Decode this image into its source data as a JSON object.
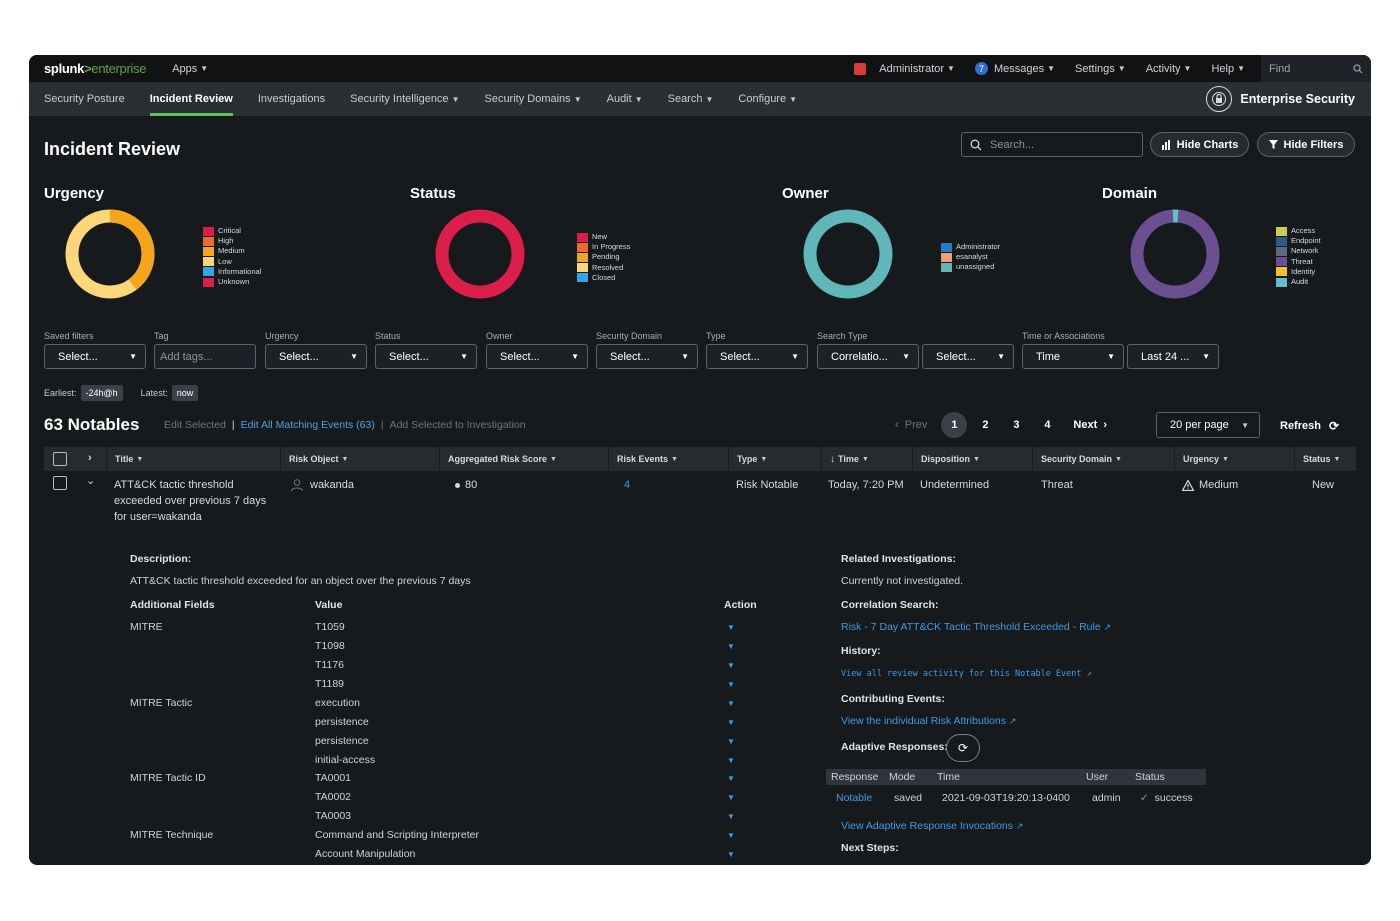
{
  "topbar": {
    "logo_main": "splunk",
    "logo_gt": ">",
    "logo_sub": "enterprise",
    "apps": "Apps",
    "user": "Administrator",
    "messages_count": "7",
    "messages": "Messages",
    "settings": "Settings",
    "activity": "Activity",
    "help": "Help",
    "find": "Find"
  },
  "nav": {
    "items": [
      "Security Posture",
      "Incident Review",
      "Investigations",
      "Security Intelligence",
      "Security Domains",
      "Audit",
      "Search",
      "Configure"
    ],
    "active": "Incident Review",
    "brand": "Enterprise Security"
  },
  "header": {
    "title": "Incident Review",
    "search_placeholder": "Search...",
    "hide_charts": "Hide Charts",
    "hide_filters": "Hide Filters"
  },
  "charts": {
    "urgency": {
      "title": "Urgency",
      "legend": [
        "Critical",
        "High",
        "Medium",
        "Low",
        "Informational",
        "Unknown"
      ]
    },
    "status": {
      "title": "Status",
      "legend": [
        "New",
        "In Progress",
        "Pending",
        "Resolved",
        "Closed"
      ]
    },
    "owner": {
      "title": "Owner",
      "legend": [
        "Administrator",
        "esanalyst",
        "unassigned"
      ]
    },
    "domain": {
      "title": "Domain",
      "legend": [
        "Access",
        "Endpoint",
        "Network",
        "Threat",
        "Identity",
        "Audit"
      ]
    }
  },
  "colors": {
    "critical": "#dc1f4a",
    "high": "#f0682a",
    "medium": "#f4a51c",
    "low": "#fbd77a",
    "informational": "#2ea6e8",
    "unknown": "#dc1f4a",
    "status_new": "#dc1f4a",
    "status_inprogress": "#f0682a",
    "status_pending": "#f4a51c",
    "status_resolved": "#fbd77a",
    "status_closed": "#2ea6e8",
    "owner_admin": "#1f7ec6",
    "owner_esanalyst": "#f0a070",
    "owner_unassigned": "#5fb7b9",
    "domain_access": "#c9cd58",
    "domain_endpoint": "#2f5a86",
    "domain_network": "#5c6a84",
    "domain_threat": "#6b4f90",
    "domain_identity": "#f2c42c",
    "domain_audit": "#62c0c8",
    "accent_green": "#5cc05c",
    "link_blue": "#3f9be3"
  },
  "filters": {
    "labels": [
      "Saved filters",
      "Tag",
      "Urgency",
      "Status",
      "Owner",
      "Security Domain",
      "Type",
      "Search Type",
      "Time or Associations"
    ],
    "saved_filters": "Select...",
    "tag_placeholder": "Add tags...",
    "urgency": "Select...",
    "status": "Select...",
    "owner": "Select...",
    "security_domain": "Select...",
    "type": "Select...",
    "search_type_1": "Correlatio...",
    "search_type_2": "Select...",
    "time_1": "Time",
    "time_2": "Last 24 ..."
  },
  "time": {
    "earliest_label": "Earliest:",
    "earliest": "-24h@h",
    "latest_label": "Latest:",
    "latest": "now"
  },
  "notables": {
    "title": "63 Notables",
    "edit_selected": "Edit Selected",
    "separator": "|",
    "edit_all": "Edit All Matching Events (63)",
    "add_selected": "Add Selected to Investigation",
    "prev": "Prev",
    "pages": [
      "1",
      "2",
      "3",
      "4"
    ],
    "current_page": "1",
    "next": "Next",
    "per_page": "20 per page",
    "refresh": "Refresh"
  },
  "table": {
    "columns": [
      "Title",
      "Risk Object",
      "Aggregated Risk Score",
      "Risk Events",
      "Type",
      "Time",
      "Disposition",
      "Security Domain",
      "Urgency",
      "Status"
    ],
    "row": {
      "title_l1": "ATT&CK tactic threshold",
      "title_l2": "exceeded over previous 7 days",
      "title_l3": "for user=wakanda",
      "risk_object": "wakanda",
      "risk_score": "80",
      "risk_events": "4",
      "type": "Risk Notable",
      "time": "Today, 7:20 PM",
      "disposition": "Undetermined",
      "security_domain": "Threat",
      "urgency": "Medium",
      "status": "New"
    }
  },
  "detail": {
    "description_label": "Description:",
    "description": "ATT&CK tactic threshold exceeded for an object over the previous 7 days",
    "fields_header": "Additional Fields",
    "value_header": "Value",
    "action_header": "Action",
    "field_mitre": "MITRE",
    "field_tactic": "MITRE Tactic",
    "field_tactic_id": "MITRE Tactic ID",
    "field_technique": "MITRE Technique",
    "values": [
      "T1059",
      "T1098",
      "T1176",
      "T1189",
      "execution",
      "persistence",
      "persistence",
      "initial-access",
      "TA0001",
      "TA0002",
      "TA0003",
      "Command and Scripting Interpreter",
      "Account Manipulation"
    ],
    "related_label": "Related Investigations:",
    "related_text": "Currently not investigated.",
    "correlation_label": "Correlation Search:",
    "correlation_link": "Risk - 7 Day ATT&CK Tactic Threshold Exceeded - Rule",
    "history_label": "History:",
    "history_link": "View all review activity for this Notable Event",
    "contributing_label": "Contributing Events:",
    "contributing_link": "View the individual Risk Attributions",
    "adaptive_label": "Adaptive Responses:",
    "ar_headers": [
      "Response",
      "Mode",
      "Time",
      "User",
      "Status"
    ],
    "ar_row": [
      "Notable",
      "saved",
      "2021-09-03T19:20:13-0400",
      "admin",
      "success"
    ],
    "ar_link": "View Adaptive Response Invocations",
    "next_steps_label": "Next Steps:"
  }
}
